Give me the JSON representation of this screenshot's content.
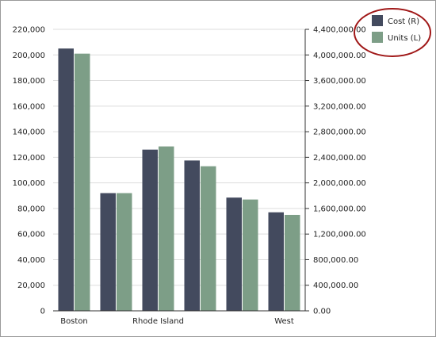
{
  "chart_data": {
    "type": "bar",
    "categories": [
      "Boston",
      "",
      "Rhode Island",
      "",
      "",
      "West"
    ],
    "series": [
      {
        "name": "Cost (R)",
        "axis": "right",
        "color": "#434a5e",
        "values": [
          4100000,
          1840000,
          2520000,
          2350000,
          1770000,
          1540000
        ]
      },
      {
        "name": "Units (L)",
        "axis": "left",
        "color": "#7d9e87",
        "values": [
          201000,
          92000,
          128500,
          113000,
          87000,
          75000
        ]
      }
    ],
    "y_left": {
      "min": 0,
      "max": 220000,
      "ticks": [
        "0",
        "20,000",
        "40,000",
        "60,000",
        "80,000",
        "100,000",
        "120,000",
        "140,000",
        "160,000",
        "180,000",
        "200,000",
        "220,000"
      ]
    },
    "y_right": {
      "min": 0,
      "max": 4400000,
      "ticks": [
        "0.00",
        "400,000.00",
        "800,000.00",
        "1,200,000.00",
        "1,600,000.00",
        "2,000,000.00",
        "2,400,000.00",
        "2,800,000.00",
        "3,200,000.00",
        "3,600,000.00",
        "4,000,000.00",
        "4,400,000.00"
      ]
    },
    "grid": true,
    "legend": {
      "position": "top-right",
      "highlighted": true,
      "highlight_color": "#a01818",
      "entries": [
        "Cost (R)",
        "Units (L)"
      ]
    },
    "colors": {
      "gridline": "#dddddd",
      "axis": "#333333"
    }
  }
}
